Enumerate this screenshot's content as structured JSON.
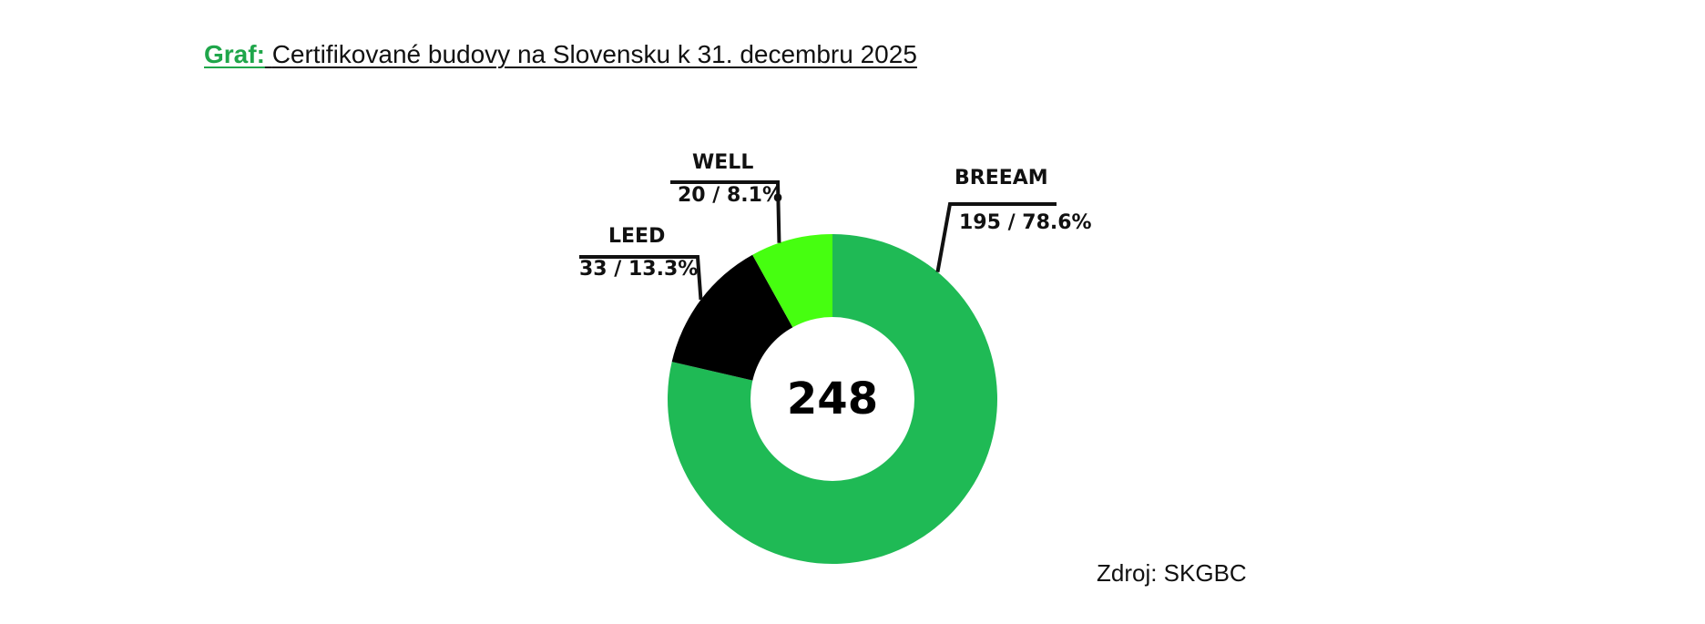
{
  "header": {
    "title_prefix": "Graf:",
    "title_text": "Certifikované budovy na Slovensku k 31. decembru 2025"
  },
  "footer": {
    "source": "Zdroj: SKGBC"
  },
  "chart_data": {
    "type": "pie",
    "donut": true,
    "total": "248",
    "slices": [
      {
        "name": "BREEAM",
        "value": 195,
        "label": "195 / 78.6%",
        "color": "#1fba55"
      },
      {
        "name": "LEED",
        "value": 33,
        "label": "33 / 13.3%",
        "color": "#000000"
      },
      {
        "name": "WELL",
        "value": 20,
        "label": "20 / 8.1%",
        "color": "#46ff10"
      }
    ]
  }
}
